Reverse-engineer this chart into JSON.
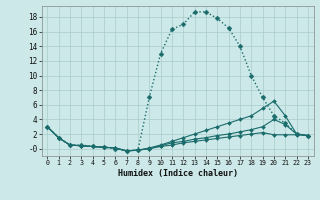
{
  "title": "",
  "xlabel": "Humidex (Indice chaleur)",
  "bg_color": "#cce8e8",
  "grid_color": "#aacccc",
  "line_color": "#1a6b6b",
  "xlim": [
    -0.5,
    23.5
  ],
  "ylim": [
    -1.0,
    19.5
  ],
  "xticks": [
    0,
    1,
    2,
    3,
    4,
    5,
    6,
    7,
    8,
    9,
    10,
    11,
    12,
    13,
    14,
    15,
    16,
    17,
    18,
    19,
    20,
    21,
    22,
    23
  ],
  "yticks": [
    0,
    2,
    4,
    6,
    8,
    10,
    12,
    14,
    16,
    18
  ],
  "ytick_labels": [
    "-0",
    "2",
    "4",
    "6",
    "8",
    "10",
    "12",
    "14",
    "16",
    "18"
  ],
  "series": [
    {
      "x": [
        0,
        1,
        2,
        3,
        4,
        5,
        6,
        7,
        8,
        9,
        10,
        11,
        12,
        13,
        14,
        15,
        16,
        17,
        18,
        19,
        20,
        21,
        22,
        23
      ],
      "y": [
        3.0,
        1.5,
        0.5,
        0.5,
        0.3,
        0.2,
        0.0,
        -0.3,
        -0.2,
        7.0,
        13.0,
        16.3,
        17.0,
        18.7,
        18.7,
        17.8,
        16.5,
        14.0,
        10.0,
        7.0,
        4.5,
        3.5,
        2.0,
        1.8
      ],
      "style": "dotted",
      "lw": 1.0,
      "ms": 2.5
    },
    {
      "x": [
        0,
        1,
        2,
        3,
        4,
        5,
        6,
        7,
        8,
        9,
        10,
        11,
        12,
        13,
        14,
        15,
        16,
        17,
        18,
        19,
        20,
        21,
        22,
        23
      ],
      "y": [
        3.0,
        1.5,
        0.5,
        0.4,
        0.3,
        0.2,
        0.1,
        -0.3,
        -0.2,
        0.1,
        0.5,
        1.0,
        1.5,
        2.0,
        2.5,
        3.0,
        3.5,
        4.0,
        4.5,
        5.5,
        6.5,
        4.5,
        2.0,
        1.8
      ],
      "style": "solid",
      "lw": 0.8,
      "ms": 2.0
    },
    {
      "x": [
        0,
        1,
        2,
        3,
        4,
        5,
        6,
        7,
        8,
        9,
        10,
        11,
        12,
        13,
        14,
        15,
        16,
        17,
        18,
        19,
        20,
        21,
        22,
        23
      ],
      "y": [
        3.0,
        1.5,
        0.5,
        0.4,
        0.3,
        0.2,
        0.1,
        -0.3,
        -0.2,
        0.0,
        0.4,
        0.8,
        1.0,
        1.3,
        1.5,
        1.8,
        2.0,
        2.3,
        2.6,
        3.0,
        4.0,
        3.3,
        2.0,
        1.8
      ],
      "style": "solid",
      "lw": 0.8,
      "ms": 2.0
    },
    {
      "x": [
        0,
        1,
        2,
        3,
        4,
        5,
        6,
        7,
        8,
        9,
        10,
        11,
        12,
        13,
        14,
        15,
        16,
        17,
        18,
        19,
        20,
        21,
        22,
        23
      ],
      "y": [
        3.0,
        1.5,
        0.5,
        0.4,
        0.3,
        0.2,
        0.1,
        -0.3,
        -0.2,
        0.0,
        0.3,
        0.5,
        0.8,
        1.0,
        1.2,
        1.4,
        1.6,
        1.8,
        2.0,
        2.2,
        1.9,
        1.9,
        1.9,
        1.8
      ],
      "style": "solid",
      "lw": 0.8,
      "ms": 2.0
    }
  ]
}
